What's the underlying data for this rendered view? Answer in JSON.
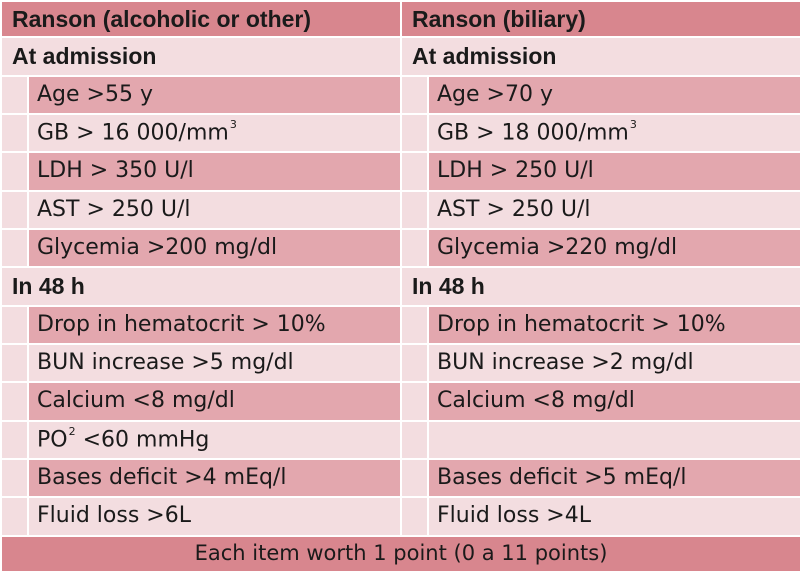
{
  "table": {
    "headers": [
      "Ranson (alcoholic or other)",
      "Ranson (biliary)"
    ],
    "sections": [
      {
        "title": "At admission",
        "items": [
          {
            "left": "Age >55 y",
            "right": "Age >70 y"
          },
          {
            "left": "GB > 16 000/mm",
            "left_sup": "3",
            "right": "GB > 18 000/mm",
            "right_sup": "3"
          },
          {
            "left": "LDH > 350 U/l",
            "right": "LDH > 250 U/l"
          },
          {
            "left": "AST > 250 U/l",
            "right": "AST > 250 U/l"
          },
          {
            "left": "Glycemia >200 mg/dl",
            "right": "Glycemia >220 mg/dl"
          }
        ]
      },
      {
        "title": "In 48 h",
        "items": [
          {
            "left": "Drop in hematocrit > 10%",
            "right": "Drop in hematocrit > 10%"
          },
          {
            "left": "BUN increase >5 mg/dl",
            "right": "BUN increase >2 mg/dl"
          },
          {
            "left": "Calcium <8 mg/dl",
            "right": "Calcium <8 mg/dl"
          },
          {
            "left": "PO",
            "left_sup": "2",
            "left_suffix": " <60 mmHg",
            "right": ""
          },
          {
            "left": "Bases deficit >4 mEq/l",
            "right": "Bases deficit >5 mEq/l"
          },
          {
            "left": "Fluid loss >6L",
            "right": "Fluid loss >4L"
          }
        ]
      }
    ],
    "footer": "Each item worth 1 point (0 a 11 points)"
  }
}
